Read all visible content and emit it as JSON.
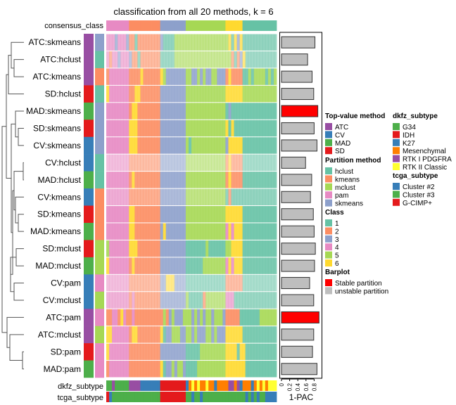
{
  "chart_data": {
    "type": "heatmap",
    "title": "classification from all 20 methods, k = 6",
    "consensus_label": "consensus_class",
    "consensus": "444444442222222222233333333355555555555555666666111111111111",
    "rows": [
      {
        "label": "ATC:skmeans",
        "method": "ATC",
        "partition": "skmeans",
        "pac": 0.82,
        "stable": false,
        "alpha": 0.7,
        "classes": "444344432212222222231111555555555555555555561636111111111111"
      },
      {
        "label": "ATC:hclust",
        "method": "ATC",
        "partition": "hclust",
        "pac": 0.64,
        "stable": false,
        "alpha": 0.6,
        "classes": "424434443221222222211111555555555555555555552123611111111111"
      },
      {
        "label": "ATC:kmeans",
        "method": "ATC",
        "partition": "kmeans",
        "pac": 0.75,
        "stable": false,
        "alpha": 0.85,
        "classes": "244444442222622222265333333355335353355333262222115155551515"
      },
      {
        "label": "SD:hclust",
        "method": "SD",
        "partition": "hclust",
        "pac": 0.79,
        "stable": false,
        "alpha": 0.85,
        "classes": "644444442266222222233333333355555555555555666666555555555555"
      },
      {
        "label": "MAD:skmeans",
        "method": "MAD",
        "partition": "skmeans",
        "pac": 0.89,
        "stable": true,
        "alpha": 0.9,
        "classes": "444444442662222222233333333355555555555555131111111111111111"
      },
      {
        "label": "SD:skmeans",
        "method": "SD",
        "partition": "skmeans",
        "pac": 0.8,
        "stable": false,
        "alpha": 0.9,
        "classes": "444444446662222222233333333355555555555555616111111111111111"
      },
      {
        "label": "CV:skmeans",
        "method": "CV",
        "partition": "skmeans",
        "pac": 0.87,
        "stable": false,
        "alpha": 0.9,
        "classes": "444444446662222222233333333351555555555555366666111111111111"
      },
      {
        "label": "CV:hclust",
        "method": "CV",
        "partition": "hclust",
        "pac": 0.59,
        "stable": false,
        "alpha": 0.55,
        "classes": "444444442222222222233333333355555555555555262222111111111111"
      },
      {
        "label": "MAD:hclust",
        "method": "MAD",
        "partition": "hclust",
        "pac": 0.74,
        "stable": false,
        "alpha": 0.85,
        "classes": "444444442622222222233333333355555555555555262222111111111111"
      },
      {
        "label": "CV:kmeans",
        "method": "CV",
        "partition": "kmeans",
        "pac": 0.71,
        "stable": false,
        "alpha": 0.7,
        "classes": "444444442222222222233333333355555555555555121111111111111111"
      },
      {
        "label": "SD:kmeans",
        "method": "SD",
        "partition": "kmeans",
        "pac": 0.78,
        "stable": false,
        "alpha": 0.9,
        "classes": "444444446622222222233333333355555555555555666666111111111111"
      },
      {
        "label": "MAD:kmeans",
        "method": "MAD",
        "partition": "kmeans",
        "pac": 0.8,
        "stable": false,
        "alpha": 0.9,
        "classes": "444444446622222222236333333355555555555555464666111111111111"
      },
      {
        "label": "SD:mclust",
        "method": "SD",
        "partition": "mclust",
        "pac": 0.83,
        "stable": false,
        "alpha": 0.9,
        "classes": "544444446662222222233333333311111115111111556666111111111111"
      },
      {
        "label": "MAD:mclust",
        "method": "MAD",
        "partition": "mclust",
        "pac": 0.81,
        "stable": false,
        "alpha": 0.85,
        "classes": "644444442622222222233333333311111155555555464666111111111111"
      },
      {
        "label": "CV:pam",
        "method": "CV",
        "partition": "pam",
        "pac": 0.69,
        "stable": false,
        "alpha": 0.55,
        "classes": "444444442222222222233666333311111111111111222222111111111111"
      },
      {
        "label": "CV:mclust",
        "method": "CV",
        "partition": "mclust",
        "pac": 0.79,
        "stable": false,
        "alpha": 0.65,
        "classes": "444444442422222222233333333351111125555555444111111111111111"
      },
      {
        "label": "ATC:pam",
        "method": "ATC",
        "partition": "pam",
        "pac": 0.92,
        "stable": true,
        "alpha": 0.9,
        "classes": "224426422422222222225235333555353535535553222221111111555555"
      },
      {
        "label": "ATC:mclust",
        "method": "ATC",
        "partition": "mclust",
        "pac": 0.79,
        "stable": false,
        "alpha": 0.85,
        "classes": "664444442662222222261335553355353335535333666666111111111111"
      },
      {
        "label": "SD:pam",
        "method": "SD",
        "partition": "pam",
        "pac": 0.76,
        "stable": false,
        "alpha": 0.85,
        "classes": "644444442222222222233333333311111555555555666616611111111111"
      },
      {
        "label": "MAD:pam",
        "method": "MAD",
        "partition": "pam",
        "pac": 0.87,
        "stable": false,
        "alpha": 0.9,
        "classes": "244444442222222222261335355311115555555555666666611111111111"
      }
    ],
    "dkfz_label": "dkfz_subtype",
    "dkfz": "GGPGGGGGPPPPKKKKKKKIIIIIIIIIKMCMCMMCMMKMMMMPPMPKMMMKMCMCMCCC",
    "tcga_label": "tcga_subtype",
    "tcga": "RBGGGGGGGGGGGGGGGGGRRRRRRRRRGGBGGBGGGGGGGGGGGGGGGBGBGBGGBBBB",
    "barplot": {
      "xlabel": "1-PAC",
      "xlim": [
        0,
        0.95
      ],
      "ticks": [
        "0",
        "0.2",
        "0.4",
        "0.6",
        "0.8"
      ]
    }
  },
  "colors": {
    "class": {
      "1": "#66C2A5",
      "2": "#FC8D62",
      "3": "#8DA0CB",
      "4": "#E78AC3",
      "5": "#A6D854",
      "6": "#FFD92F"
    },
    "method": {
      "ATC": "#984EA3",
      "CV": "#377EB8",
      "MAD": "#4DAF4A",
      "SD": "#E41A1C"
    },
    "partition": {
      "hclust": "#66C2A5",
      "kmeans": "#FC8D62",
      "mclust": "#A6D854",
      "pam": "#E78AC3",
      "skmeans": "#8DA0CB"
    },
    "dkfz": {
      "G": "#4DAF4A",
      "I": "#E41A1C",
      "K": "#377EB8",
      "M": "#FF7F00",
      "P": "#984EA3",
      "C": "#FFFF33"
    },
    "tcga": {
      "B": "#377EB8",
      "G": "#4DAF4A",
      "R": "#E41A1C"
    },
    "stable": "#FF0000",
    "unstable": "#BEBEBE"
  },
  "legend": {
    "method": {
      "title": "Top-value method",
      "items": [
        {
          "label": "ATC",
          "color": "#984EA3"
        },
        {
          "label": "CV",
          "color": "#377EB8"
        },
        {
          "label": "MAD",
          "color": "#4DAF4A"
        },
        {
          "label": "SD",
          "color": "#E41A1C"
        }
      ]
    },
    "partition": {
      "title": "Partition method",
      "items": [
        {
          "label": "hclust",
          "color": "#66C2A5"
        },
        {
          "label": "kmeans",
          "color": "#FC8D62"
        },
        {
          "label": "mclust",
          "color": "#A6D854"
        },
        {
          "label": "pam",
          "color": "#E78AC3"
        },
        {
          "label": "skmeans",
          "color": "#8DA0CB"
        }
      ]
    },
    "class": {
      "title": "Class",
      "items": [
        {
          "label": "1",
          "color": "#66C2A5"
        },
        {
          "label": "2",
          "color": "#FC8D62"
        },
        {
          "label": "3",
          "color": "#8DA0CB"
        },
        {
          "label": "4",
          "color": "#E78AC3"
        },
        {
          "label": "5",
          "color": "#A6D854"
        },
        {
          "label": "6",
          "color": "#FFD92F"
        }
      ]
    },
    "barplot": {
      "title": "Barplot",
      "items": [
        {
          "label": "Stable partition",
          "color": "#FF0000"
        },
        {
          "label": "unstable partition",
          "color": "#BEBEBE"
        }
      ]
    },
    "dkfz": {
      "title": "dkfz_subtype",
      "items": [
        {
          "label": "G34",
          "color": "#4DAF4A"
        },
        {
          "label": "IDH",
          "color": "#E41A1C"
        },
        {
          "label": "K27",
          "color": "#377EB8"
        },
        {
          "label": "Mesenchymal",
          "color": "#FF7F00"
        },
        {
          "label": "RTK I PDGFRA",
          "color": "#984EA3"
        },
        {
          "label": "RTK II Classic",
          "color": "#FFFF33"
        }
      ]
    },
    "tcga": {
      "title": "tcga_subtype",
      "items": [
        {
          "label": "Cluster #2",
          "color": "#377EB8"
        },
        {
          "label": "Cluster #3",
          "color": "#4DAF4A"
        },
        {
          "label": "G-CIMP+",
          "color": "#E41A1C"
        }
      ]
    }
  }
}
